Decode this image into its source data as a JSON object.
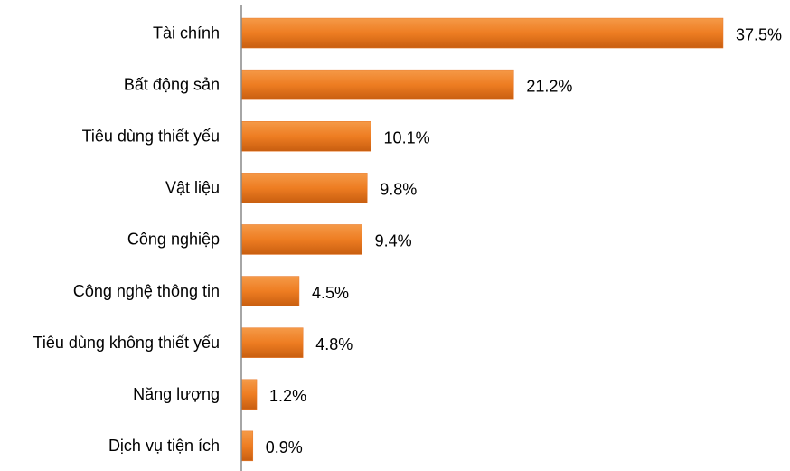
{
  "chart_data": {
    "type": "bar",
    "orientation": "horizontal",
    "categories": [
      "Tài chính",
      "Bất động sản",
      "Tiêu dùng thiết yếu",
      "Vật liệu",
      "Công nghiệp",
      "Công nghệ thông tin",
      "Tiêu dùng không thiết yếu",
      "Năng lượng",
      "Dịch vụ tiện ích"
    ],
    "values": [
      37.5,
      21.2,
      10.1,
      9.8,
      9.4,
      4.5,
      4.8,
      1.2,
      0.9
    ],
    "value_labels": [
      "37.5%",
      "21.2%",
      "10.1%",
      "9.8%",
      "9.4%",
      "4.5%",
      "4.8%",
      "1.2%",
      "0.9%"
    ],
    "color": "#e8782a"
  }
}
